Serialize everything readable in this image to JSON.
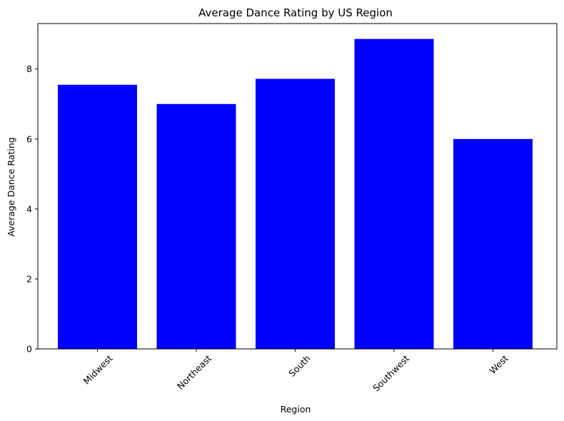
{
  "chart_data": {
    "type": "bar",
    "title": "Average Dance Rating by US Region",
    "xlabel": "Region",
    "ylabel": "Average Dance Rating",
    "categories": [
      "Midwest",
      "Northeast",
      "South",
      "Southwest",
      "West"
    ],
    "values": [
      7.55,
      7.0,
      7.72,
      8.86,
      6.0
    ],
    "ylim": [
      0,
      9.3
    ],
    "yticks": [
      "0",
      "2",
      "4",
      "6",
      "8"
    ],
    "grid": false,
    "bar_color": "#0000ff"
  }
}
